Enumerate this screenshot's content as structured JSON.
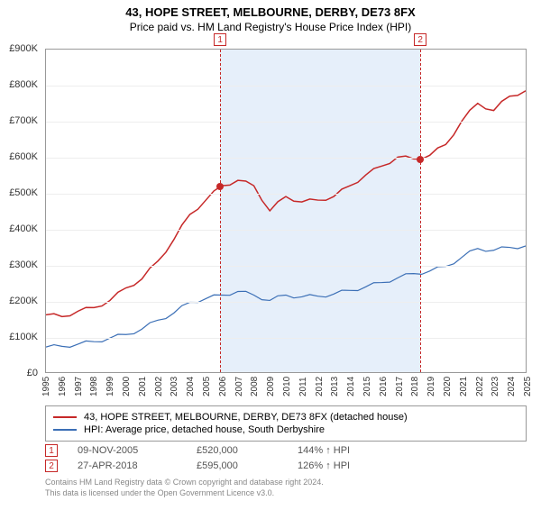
{
  "title": "43, HOPE STREET, MELBOURNE, DERBY, DE73 8FX",
  "subtitle": "Price paid vs. HM Land Registry's House Price Index (HPI)",
  "chart": {
    "type": "line",
    "background_color": "#ffffff",
    "grid_color": "#eeeeee",
    "border_color": "#999999",
    "xlim_years": [
      1995,
      2025
    ],
    "ylim": [
      0,
      900000
    ],
    "ytick_step": 100000,
    "ytick_prefix": "£",
    "ytick_suffix": "K",
    "years": [
      1995,
      1996,
      1997,
      1998,
      1999,
      2000,
      2001,
      2002,
      2003,
      2004,
      2005,
      2006,
      2007,
      2008,
      2009,
      2010,
      2011,
      2012,
      2013,
      2014,
      2015,
      2016,
      2017,
      2018,
      2019,
      2020,
      2021,
      2022,
      2023,
      2024,
      2025
    ],
    "year_label_fontsize": 10,
    "series": [
      {
        "name": "property",
        "label": "43, HOPE STREET, MELBOURNE, DERBY, DE73 8FX (detached house)",
        "color": "#c62828",
        "line_width": 1.5,
        "values_by_year": {
          "1995": 160000,
          "1996": 155000,
          "1997": 170000,
          "1998": 180000,
          "1999": 200000,
          "2000": 235000,
          "2001": 260000,
          "2002": 310000,
          "2003": 370000,
          "2004": 440000,
          "2005": 480000,
          "2006": 520000,
          "2007": 535000,
          "2008": 520000,
          "2009": 450000,
          "2010": 490000,
          "2011": 475000,
          "2012": 480000,
          "2013": 490000,
          "2014": 520000,
          "2015": 550000,
          "2016": 575000,
          "2017": 600000,
          "2018": 595000,
          "2019": 605000,
          "2020": 635000,
          "2021": 700000,
          "2022": 750000,
          "2023": 730000,
          "2024": 770000,
          "2025": 785000
        }
      },
      {
        "name": "hpi",
        "label": "HPI: Average price, detached house, South Derbyshire",
        "color": "#3b6fb6",
        "line_width": 1.2,
        "values_by_year": {
          "1995": 70000,
          "1996": 72000,
          "1997": 78000,
          "1998": 85000,
          "1999": 95000,
          "2000": 105000,
          "2001": 120000,
          "2002": 145000,
          "2003": 165000,
          "2004": 195000,
          "2005": 205000,
          "2006": 215000,
          "2007": 225000,
          "2008": 215000,
          "2009": 200000,
          "2010": 215000,
          "2011": 210000,
          "2012": 212000,
          "2013": 218000,
          "2014": 228000,
          "2015": 238000,
          "2016": 250000,
          "2017": 263000,
          "2018": 275000,
          "2019": 282000,
          "2020": 295000,
          "2021": 320000,
          "2022": 345000,
          "2023": 340000,
          "2024": 348000,
          "2025": 352000
        }
      }
    ],
    "shaded_range_years": [
      2005.85,
      2018.32
    ],
    "markers": [
      {
        "id": "1",
        "year": 2005.85,
        "value": 520000
      },
      {
        "id": "2",
        "year": 2018.32,
        "value": 595000
      }
    ]
  },
  "sales": [
    {
      "id": "1",
      "date": "09-NOV-2005",
      "price": "£520,000",
      "hpi_ratio": "144% ↑ HPI"
    },
    {
      "id": "2",
      "date": "27-APR-2018",
      "price": "£595,000",
      "hpi_ratio": "126% ↑ HPI"
    }
  ],
  "attribution": {
    "line1": "Contains HM Land Registry data © Crown copyright and database right 2024.",
    "line2": "This data is licensed under the Open Government Licence v3.0."
  },
  "colors": {
    "marker_border": "#c62828",
    "text_muted": "#888888",
    "text_body": "#555555"
  }
}
